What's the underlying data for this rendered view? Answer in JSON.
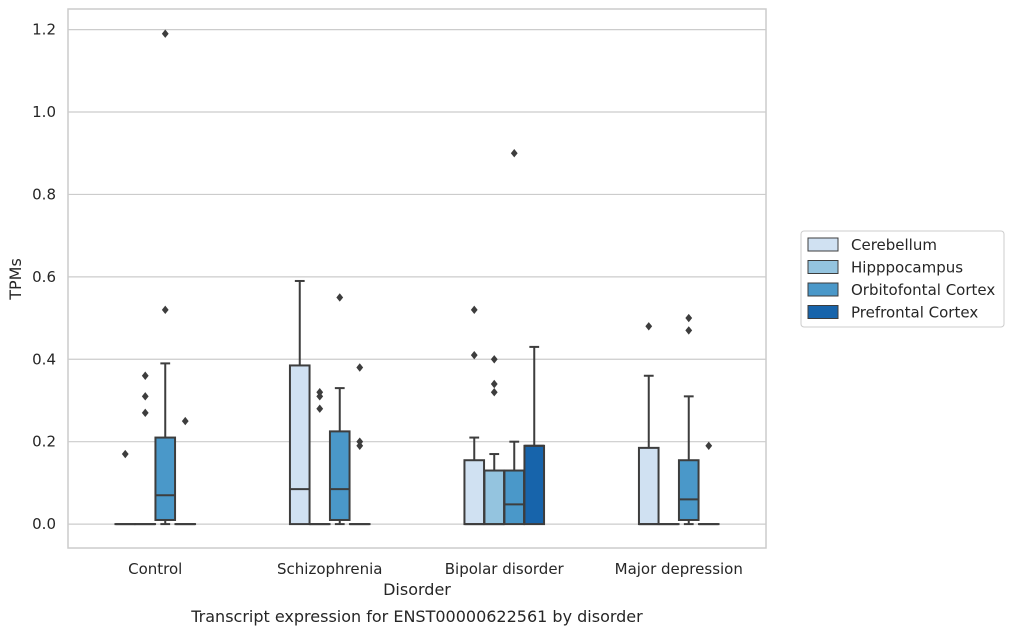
{
  "chart_data": {
    "type": "box",
    "title": "",
    "caption": "Transcript expression for ENST00000622561 by disorder",
    "xlabel": "Disorder",
    "ylabel": "TPMs",
    "ylim": [
      -0.058,
      1.25
    ],
    "yticks": [
      0.0,
      0.2,
      0.4,
      0.6,
      0.8,
      1.0,
      1.2
    ],
    "ytick_labels": [
      "0.0",
      "0.2",
      "0.4",
      "0.6",
      "0.8",
      "1.0",
      "1.2"
    ],
    "grid": "horizontal",
    "legend_position": "right",
    "categories": [
      "Control",
      "Schizophrenia",
      "Bipolar disorder",
      "Major depression"
    ],
    "series": [
      {
        "name": "Cerebellum",
        "color": "#d0e1f2",
        "boxes": [
          {
            "q1": 0,
            "median": 0,
            "q3": 0,
            "whisker_low": 0,
            "whisker_high": 0,
            "outliers": [
              0.17
            ]
          },
          {
            "q1": 0,
            "median": 0.085,
            "q3": 0.385,
            "whisker_low": 0,
            "whisker_high": 0.59,
            "outliers": []
          },
          {
            "q1": 0,
            "median": 0,
            "q3": 0.155,
            "whisker_low": 0,
            "whisker_high": 0.21,
            "outliers": [
              0.41,
              0.52
            ]
          },
          {
            "q1": 0,
            "median": 0,
            "q3": 0.185,
            "whisker_low": 0,
            "whisker_high": 0.36,
            "outliers": [
              0.48
            ]
          }
        ]
      },
      {
        "name": "Hipppocampus",
        "color": "#94c4df",
        "boxes": [
          {
            "q1": 0,
            "median": 0,
            "q3": 0,
            "whisker_low": 0,
            "whisker_high": 0,
            "outliers": [
              0.27,
              0.31,
              0.36
            ]
          },
          {
            "q1": 0,
            "median": 0,
            "q3": 0,
            "whisker_low": 0,
            "whisker_high": 0,
            "outliers": [
              0.28,
              0.31,
              0.32
            ]
          },
          {
            "q1": 0,
            "median": 0,
            "q3": 0.13,
            "whisker_low": 0,
            "whisker_high": 0.17,
            "outliers": [
              0.32,
              0.34,
              0.4
            ]
          },
          {
            "q1": 0,
            "median": 0,
            "q3": 0,
            "whisker_low": 0,
            "whisker_high": 0,
            "outliers": []
          }
        ]
      },
      {
        "name": "Orbitofontal Cortex",
        "color": "#4a98c9",
        "boxes": [
          {
            "q1": 0.01,
            "median": 0.07,
            "q3": 0.21,
            "whisker_low": 0,
            "whisker_high": 0.39,
            "outliers": [
              0.52,
              1.19
            ]
          },
          {
            "q1": 0.01,
            "median": 0.085,
            "q3": 0.225,
            "whisker_low": 0,
            "whisker_high": 0.33,
            "outliers": [
              0.55
            ]
          },
          {
            "q1": 0,
            "median": 0.048,
            "q3": 0.13,
            "whisker_low": 0,
            "whisker_high": 0.2,
            "outliers": [
              0.9
            ]
          },
          {
            "q1": 0.01,
            "median": 0.06,
            "q3": 0.155,
            "whisker_low": 0,
            "whisker_high": 0.31,
            "outliers": [
              0.47,
              0.5
            ]
          }
        ]
      },
      {
        "name": "Prefrontal Cortex",
        "color": "#1764ab",
        "boxes": [
          {
            "q1": 0,
            "median": 0,
            "q3": 0,
            "whisker_low": 0,
            "whisker_high": 0,
            "outliers": [
              0.25
            ]
          },
          {
            "q1": 0,
            "median": 0,
            "q3": 0,
            "whisker_low": 0,
            "whisker_high": 0,
            "outliers": [
              0.19,
              0.2,
              0.38
            ]
          },
          {
            "q1": 0,
            "median": 0.19,
            "q3": 0.19,
            "whisker_low": 0,
            "whisker_high": 0.43,
            "outliers": []
          },
          {
            "q1": 0,
            "median": 0,
            "q3": 0,
            "whisker_low": 0,
            "whisker_high": 0,
            "outliers": [
              0.19
            ]
          }
        ]
      }
    ]
  }
}
